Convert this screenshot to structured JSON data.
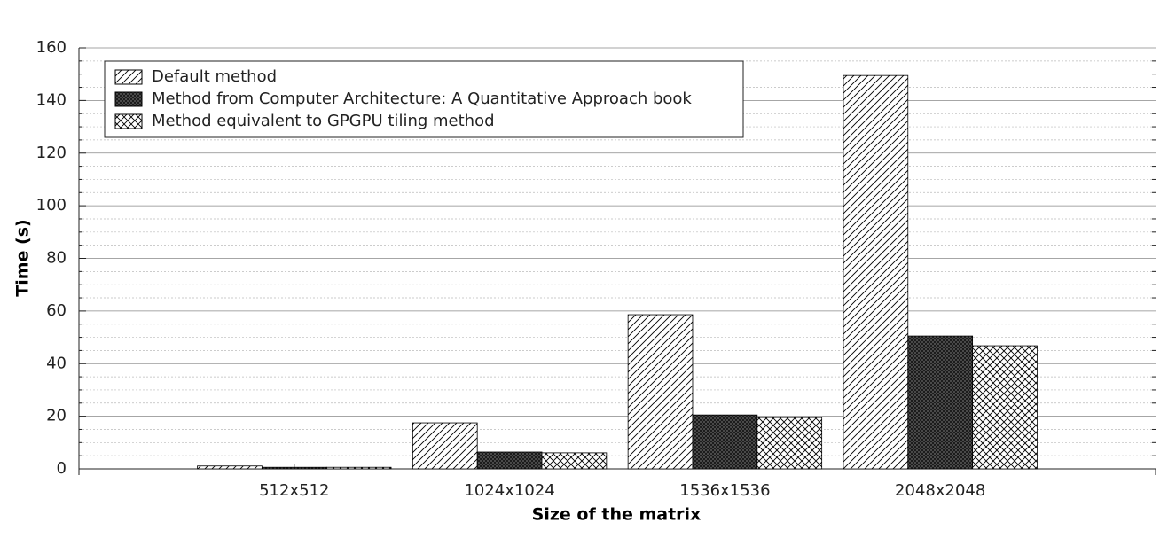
{
  "chart_data": {
    "type": "bar",
    "x_label": "Size of the matrix",
    "y_label": "Time (s)",
    "categories": [
      "512x512",
      "1024x1024",
      "1536x1536",
      "2048x2048"
    ],
    "series": [
      {
        "name": "Default method",
        "color": "#000000",
        "hatch": "diagonal",
        "values": [
          1.1,
          17.5,
          58.6,
          149.5
        ]
      },
      {
        "name": "Method from Computer Architecture: A Quantitative Approach book",
        "color": "#000000",
        "hatch": "dense-cross",
        "values": [
          0.6,
          6.4,
          20.5,
          50.5
        ]
      },
      {
        "name": "Method equivalent to GPGPU tiling method",
        "color": "#000000",
        "hatch": "cross",
        "values": [
          0.6,
          6.1,
          19.5,
          46.8
        ]
      }
    ],
    "ylim": [
      0,
      160
    ],
    "yticks": [
      0,
      20,
      40,
      60,
      80,
      100,
      120,
      140,
      160
    ],
    "grid": true,
    "legend": "top-left"
  }
}
